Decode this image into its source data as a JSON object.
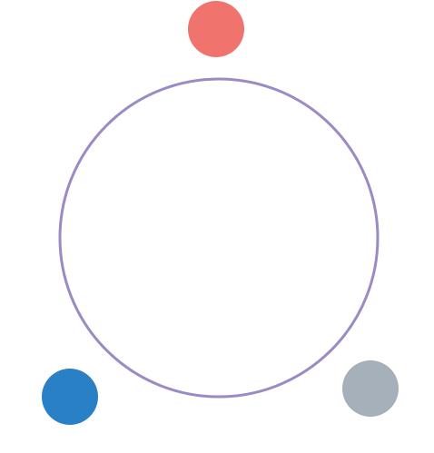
{
  "diagram": {
    "ring": {
      "color": "#9B8AC4"
    },
    "nodes": [
      {
        "id": "top-node",
        "color": "#F0736E"
      },
      {
        "id": "bottom-left-node",
        "color": "#2A80C4"
      },
      {
        "id": "bottom-right-node",
        "color": "#A6B0BA"
      }
    ]
  }
}
